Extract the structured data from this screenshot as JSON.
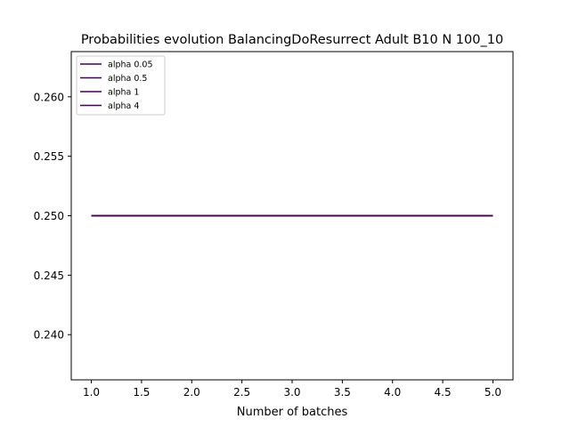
{
  "chart_data": {
    "type": "line",
    "title": "Probabilities evolution BalancingDoResurrect Adult B10 N 100_10",
    "xlabel": "Number of batches",
    "ylabel": "",
    "xlim": [
      0.8,
      5.2
    ],
    "ylim": [
      0.2362,
      0.2638
    ],
    "x_ticks": [
      "1.0",
      "1.5",
      "2.0",
      "2.5",
      "3.0",
      "3.5",
      "4.0",
      "4.5",
      "5.0"
    ],
    "y_ticks": [
      "0.240",
      "0.245",
      "0.250",
      "0.255",
      "0.260"
    ],
    "grid": false,
    "legend_position": "top-left",
    "x": [
      1,
      2,
      3,
      4,
      5
    ],
    "series": [
      {
        "name": "alpha 0.05",
        "color": "#440154",
        "values": [
          0.25,
          0.25,
          0.25,
          0.25,
          0.25
        ]
      },
      {
        "name": "alpha 0.5",
        "color": "#440154",
        "values": [
          0.25,
          0.25,
          0.25,
          0.25,
          0.25
        ]
      },
      {
        "name": "alpha 1",
        "color": "#440154",
        "values": [
          0.25,
          0.25,
          0.25,
          0.25,
          0.25
        ]
      },
      {
        "name": "alpha 4",
        "color": "#440154",
        "values": [
          0.25,
          0.25,
          0.25,
          0.25,
          0.25
        ]
      }
    ]
  }
}
